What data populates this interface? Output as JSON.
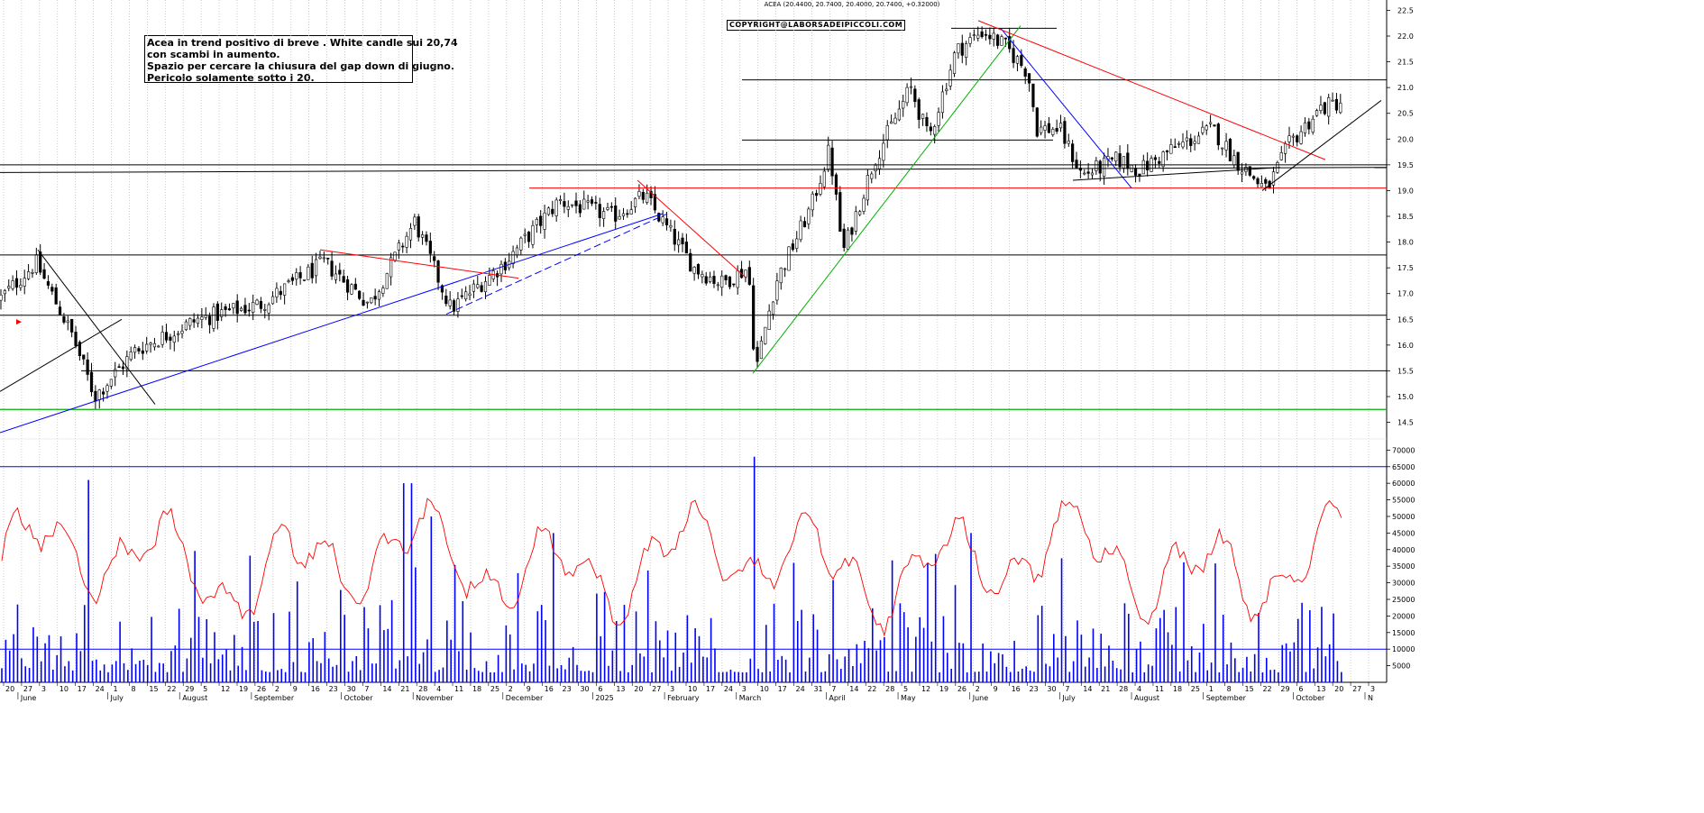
{
  "chart_data": {
    "type": "candlestick",
    "title": "ACEA (20.4400, 20.7400, 20.4000, 20.7400, +0.32000)",
    "copyright": "COPYRIGHT@LABORSADEIPICCOLI.COM",
    "annotation": [
      "Acea in trend positivo di breve . White candle sui 20,74",
      "con scambi in aumento.",
      "Spazio per cercare la chiusura del gap down di giugno.",
      "Pericolo solamente sotto i 20."
    ],
    "price_axis": {
      "ticks": [
        "22.5",
        "22.0",
        "21.5",
        "21.0",
        "20.5",
        "20.0",
        "19.5",
        "19.0",
        "18.5",
        "18.0",
        "17.5",
        "17.0",
        "16.5",
        "16.0",
        "15.5",
        "15.0",
        "14.5"
      ],
      "range": [
        14.3,
        22.7
      ]
    },
    "volume_axis": {
      "ticks": [
        "70000",
        "65000",
        "60000",
        "55000",
        "50000",
        "45000",
        "40000",
        "35000",
        "30000",
        "25000",
        "20000",
        "15000",
        "10000",
        "5000"
      ],
      "range": [
        0,
        72000
      ]
    },
    "x_day_labels": [
      "20",
      "27",
      "3",
      "10",
      "17",
      "24",
      "1",
      "8",
      "15",
      "22",
      "29",
      "5",
      "12",
      "19",
      "26",
      "2",
      "9",
      "16",
      "23",
      "30",
      "7",
      "14",
      "21",
      "28",
      "4",
      "11",
      "18",
      "25",
      "2",
      "9",
      "16",
      "23",
      "30",
      "6",
      "13",
      "20",
      "27",
      "3",
      "10",
      "17",
      "24",
      "3",
      "10",
      "17",
      "24",
      "31",
      "7",
      "14",
      "22",
      "28",
      "5",
      "12",
      "19",
      "26",
      "2",
      "9",
      "16",
      "23",
      "30",
      "7",
      "14",
      "21",
      "28",
      "4",
      "11",
      "18",
      "25",
      "1",
      "8",
      "15",
      "22",
      "29",
      "6",
      "13",
      "20",
      "27",
      "3"
    ],
    "x_month_labels": [
      "June",
      "July",
      "August",
      "September",
      "October",
      "November",
      "December",
      "2025",
      "February",
      "March",
      "April",
      "May",
      "June",
      "July",
      "August",
      "September",
      "October",
      "N"
    ],
    "price_series_start": 16.9,
    "price_series_end": 20.74,
    "horizontal_levels": [
      {
        "value": 21.15,
        "color": "#000000"
      },
      {
        "value": 19.98,
        "color": "#000000"
      },
      {
        "value": 19.5,
        "color": "#000000"
      },
      {
        "value": 19.05,
        "color": "#ff0000"
      },
      {
        "value": 17.75,
        "color": "#000000"
      },
      {
        "value": 16.58,
        "color": "#000000"
      },
      {
        "value": 15.5,
        "color": "#000000"
      },
      {
        "value": 14.75,
        "color": "#00b000"
      }
    ],
    "volume_levels": [
      {
        "value": 65000,
        "color": "#0000ff"
      },
      {
        "value": 10000,
        "color": "#0000ff"
      }
    ],
    "colors": {
      "candle": "#000000",
      "volume": "#0000ff",
      "oscillator": "#ff0000",
      "support": "#0000ff",
      "resistance": "#ff0000",
      "uptrend": "#00b000"
    },
    "grid": true
  }
}
